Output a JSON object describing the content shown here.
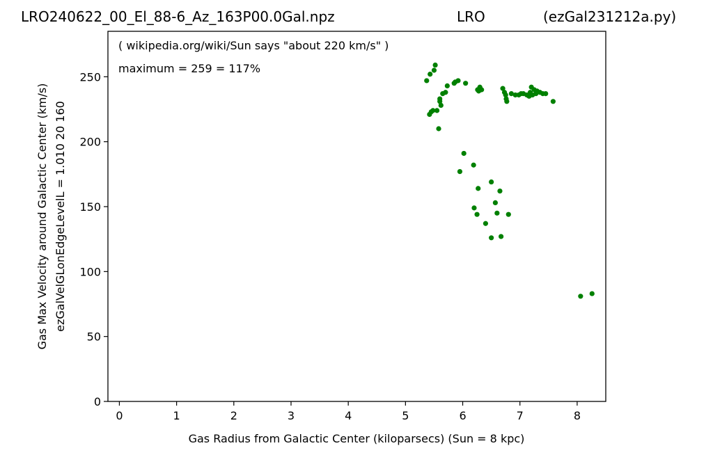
{
  "header": {
    "left": "LRO240622_00_El_88-6_Az_163P00.0Gal.npz",
    "center": "LRO",
    "right": "(ezGal231212a.py)"
  },
  "annotations": [
    "( wikipedia.org/wiki/Sun says \"about 220 km/s\" )",
    "maximum = 259 = 117%"
  ],
  "colors": {
    "points": "#008000"
  },
  "chart_data": {
    "type": "scatter",
    "xlabel": "Gas Radius from Galactic Center (kiloparsecs)  (Sun = 8 kpc)",
    "ylabel_lines": [
      "Gas Max Velocity around Galactic Center (km/s)",
      "ezGalVelGLonEdgeLevelL = 1.010  20  160"
    ],
    "xlim": [
      -0.2,
      8.5
    ],
    "ylim": [
      0,
      285
    ],
    "xticks": [
      0,
      1,
      2,
      3,
      4,
      5,
      6,
      7,
      8
    ],
    "yticks": [
      0,
      50,
      100,
      150,
      200,
      250
    ],
    "grid": false,
    "series": [
      {
        "color": "#008000",
        "x": [
          5.37,
          5.43,
          5.5,
          5.52,
          5.6,
          5.42,
          5.48,
          5.55,
          5.45,
          5.62,
          5.6,
          5.65,
          5.7,
          5.73,
          5.85,
          5.87,
          5.92,
          6.05,
          6.28,
          6.3,
          6.26,
          6.33,
          5.58,
          6.02,
          6.19,
          5.95,
          6.27,
          6.5,
          6.65,
          6.57,
          6.2,
          6.25,
          6.4,
          6.6,
          6.8,
          6.5,
          6.67,
          6.7,
          6.73,
          6.75,
          6.77,
          6.76,
          6.85,
          6.92,
          6.98,
          7.02,
          7.06,
          7.12,
          7.16,
          7.18,
          7.2,
          7.22,
          7.25,
          7.28,
          7.3,
          7.35,
          7.4,
          7.45,
          7.58,
          8.06,
          8.26
        ],
        "y": [
          247,
          252,
          255,
          259,
          233,
          221,
          224,
          224,
          223,
          228,
          231,
          237,
          238,
          243,
          245,
          246,
          247,
          245,
          239,
          242,
          240,
          240,
          210,
          191,
          182,
          177,
          164,
          169,
          162,
          153,
          149,
          144,
          137,
          145,
          144,
          126,
          127,
          241,
          238,
          236,
          231,
          233,
          237,
          236,
          236,
          237,
          237,
          236,
          235,
          238,
          242,
          236,
          240,
          237,
          239,
          238,
          237,
          237,
          231,
          81,
          83
        ]
      }
    ]
  }
}
